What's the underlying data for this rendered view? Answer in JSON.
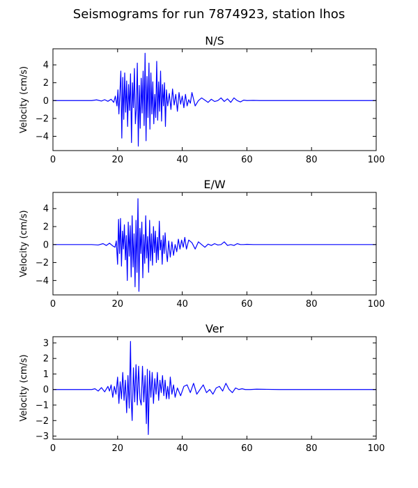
{
  "figure": {
    "title": "Seismograms for run 7874923, station lhos"
  },
  "chart_data": [
    {
      "type": "line",
      "title": "N/S",
      "xlabel": "",
      "ylabel": "Velocity (cm/s)",
      "xlim": [
        0,
        100
      ],
      "ylim": [
        -5.6,
        5.8
      ],
      "xticks": [
        0,
        20,
        40,
        60,
        80,
        100
      ],
      "yticks": [
        -4,
        -2,
        0,
        2,
        4
      ],
      "color": "#0000ff",
      "series": [
        {
          "x": [
            0,
            12,
            13.5,
            15,
            16,
            17,
            18,
            18.8,
            19.3,
            19.8,
            20.1,
            20.4,
            20.7,
            21.0,
            21.3,
            21.6,
            21.9,
            22.2,
            22.5,
            22.8,
            23.1,
            23.4,
            23.7,
            24.0,
            24.3,
            24.6,
            24.9,
            25.2,
            25.5,
            25.8,
            26.1,
            26.4,
            26.7,
            27.0,
            27.3,
            27.6,
            27.9,
            28.2,
            28.5,
            28.8,
            29.1,
            29.4,
            29.7,
            30.0,
            30.3,
            30.6,
            30.9,
            31.2,
            31.5,
            31.8,
            32.1,
            32.4,
            32.7,
            33.0,
            33.3,
            33.6,
            33.9,
            34.2,
            34.5,
            34.8,
            35.1,
            35.5,
            36,
            36.5,
            37,
            37.5,
            38,
            38.5,
            39,
            39.5,
            40,
            40.5,
            41,
            41.5,
            42,
            42.5,
            43,
            44,
            45,
            46,
            47,
            48,
            49,
            50,
            51,
            52,
            53,
            54,
            55,
            56,
            57,
            58,
            59,
            60,
            62,
            64,
            70,
            100
          ],
          "y": [
            0,
            0,
            0.08,
            -0.05,
            0.1,
            -0.08,
            0.15,
            -0.2,
            0.5,
            -0.6,
            1.2,
            -1.5,
            0.8,
            3.3,
            -4.2,
            2.6,
            -2.1,
            3.1,
            -1.3,
            2.2,
            -2.9,
            1.8,
            -1.1,
            3.0,
            -4.7,
            2.0,
            -0.8,
            3.6,
            -2.6,
            -0.9,
            4.2,
            -5.1,
            1.7,
            -3.1,
            2.5,
            -1.4,
            3.3,
            -2.8,
            5.3,
            -4.5,
            2.7,
            -1.9,
            4.2,
            -3.2,
            3.1,
            -1.5,
            2.1,
            -2.6,
            0.7,
            -1.9,
            4.4,
            -2.2,
            2.1,
            -1.2,
            3.3,
            -2.3,
            1.8,
            -0.6,
            2.0,
            -2.9,
            1.2,
            -0.6,
            0.8,
            -1.0,
            1.3,
            -0.5,
            0.7,
            -1.2,
            0.9,
            -0.4,
            0.5,
            -0.8,
            0.7,
            -0.6,
            0.1,
            -0.3,
            0.9,
            -0.6,
            0.0,
            0.3,
            0.05,
            -0.2,
            0.15,
            -0.1,
            0.0,
            0.3,
            -0.1,
            0.2,
            -0.2,
            0.3,
            0.0,
            -0.15,
            0.05,
            0.0,
            0.02,
            0.0,
            0.0,
            0.0
          ]
        }
      ]
    },
    {
      "type": "line",
      "title": "E/W",
      "xlabel": "",
      "ylabel": "Velocity (cm/s)",
      "xlim": [
        0,
        100
      ],
      "ylim": [
        -5.6,
        5.8
      ],
      "xticks": [
        0,
        20,
        40,
        60,
        80,
        100
      ],
      "yticks": [
        -4,
        -2,
        0,
        2,
        4
      ],
      "color": "#0000ff",
      "series": [
        {
          "x": [
            0,
            12,
            14,
            15.5,
            16.5,
            17.5,
            18.5,
            19.2,
            19.6,
            20.0,
            20.3,
            20.6,
            20.9,
            21.2,
            21.5,
            21.8,
            22.1,
            22.4,
            22.7,
            23.0,
            23.3,
            23.6,
            23.9,
            24.2,
            24.5,
            24.8,
            25.1,
            25.4,
            25.7,
            26.0,
            26.3,
            26.6,
            26.9,
            27.2,
            27.5,
            27.8,
            28.1,
            28.4,
            28.7,
            29.0,
            29.3,
            29.6,
            29.9,
            30.2,
            30.5,
            30.8,
            31.1,
            31.4,
            31.7,
            32.0,
            32.3,
            32.6,
            32.9,
            33.2,
            33.5,
            33.8,
            34.1,
            34.4,
            34.7,
            35.0,
            35.4,
            35.8,
            36.3,
            36.8,
            37.3,
            37.8,
            38.3,
            38.8,
            39.3,
            39.8,
            40.3,
            40.8,
            41.3,
            42,
            43,
            44,
            45,
            46,
            47,
            48,
            49,
            50,
            51,
            52,
            53,
            54,
            55,
            56,
            57,
            58,
            59,
            60,
            62,
            64,
            70,
            100
          ],
          "y": [
            0,
            0,
            -0.05,
            0.1,
            -0.1,
            0.15,
            -0.15,
            -0.3,
            0.4,
            -2.2,
            2.8,
            -1.0,
            2.9,
            -2.4,
            1.5,
            -0.5,
            2.2,
            -1.7,
            1.0,
            -4.0,
            2.5,
            -1.3,
            2.1,
            -3.6,
            3.2,
            -2.5,
            1.2,
            -4.7,
            2.7,
            -3.1,
            5.1,
            -5.2,
            1.8,
            -1.0,
            2.5,
            -3.7,
            1.1,
            -2.1,
            3.2,
            -1.5,
            0.9,
            -3.1,
            2.7,
            -1.8,
            1.2,
            -2.3,
            2.0,
            -0.9,
            1.5,
            -2.0,
            0.8,
            -1.7,
            2.6,
            -0.6,
            0.5,
            -2.2,
            1.0,
            -1.0,
            1.3,
            -0.6,
            -1.9,
            0.4,
            -1.4,
            0.3,
            -1.2,
            0.0,
            -0.8,
            0.6,
            -0.5,
            0.5,
            -0.3,
            0.8,
            -0.5,
            0.5,
            0.2,
            -0.5,
            0.3,
            0.0,
            -0.3,
            0.05,
            -0.1,
            0.1,
            -0.05,
            0.0,
            0.3,
            -0.1,
            0.0,
            -0.1,
            0.1,
            0.0,
            0.0,
            0.02,
            0.0,
            0.0,
            0.0,
            0.0
          ]
        }
      ]
    },
    {
      "type": "line",
      "title": "Ver",
      "xlabel": "",
      "ylabel": "Velocity (cm/s)",
      "xlim": [
        0,
        100
      ],
      "ylim": [
        -3.2,
        3.4
      ],
      "xticks": [
        0,
        20,
        40,
        60,
        80,
        100
      ],
      "yticks": [
        -3,
        -2,
        -1,
        0,
        1,
        2,
        3
      ],
      "color": "#0000ff",
      "series": [
        {
          "x": [
            0,
            12,
            13,
            14,
            15,
            16,
            17,
            17.5,
            18,
            18.5,
            19,
            19.5,
            20,
            20.4,
            20.8,
            21.2,
            21.6,
            22.0,
            22.4,
            22.8,
            23.2,
            23.6,
            24.0,
            24.2,
            24.5,
            24.9,
            25.3,
            25.7,
            26.1,
            26.5,
            26.9,
            27.3,
            27.7,
            28.1,
            28.5,
            28.9,
            29.2,
            29.5,
            29.9,
            30.3,
            30.7,
            31.1,
            31.5,
            31.9,
            32.3,
            32.7,
            33.1,
            33.5,
            33.9,
            34.3,
            34.7,
            35.1,
            35.5,
            35.9,
            36.3,
            36.8,
            37.3,
            37.8,
            38.5,
            39.5,
            40.5,
            41.5,
            42.5,
            43.5,
            44.5,
            45.5,
            46.5,
            47.5,
            48.5,
            49.5,
            50.5,
            51.5,
            52.5,
            53.5,
            54.5,
            55.5,
            56.5,
            57.5,
            58.5,
            59.5,
            61,
            63,
            70,
            100
          ],
          "y": [
            0,
            0,
            0.05,
            -0.1,
            0.12,
            -0.15,
            0.2,
            -0.1,
            0.3,
            -0.5,
            0.2,
            -0.3,
            0.8,
            -0.9,
            0.5,
            -0.6,
            1.1,
            -0.7,
            0.6,
            -1.5,
            0.9,
            -1.2,
            3.1,
            -0.6,
            -2.0,
            1.4,
            -0.8,
            1.6,
            -1.0,
            1.5,
            -0.6,
            -1.0,
            1.5,
            -0.8,
            0.9,
            -2.2,
            1.3,
            -2.9,
            1.2,
            -0.5,
            1.1,
            -0.9,
            0.7,
            -0.3,
            1.1,
            -0.7,
            0.6,
            -0.2,
            0.9,
            -0.4,
            0.6,
            -0.6,
            0.2,
            -0.6,
            0.8,
            -0.3,
            0.3,
            -0.5,
            0.1,
            -0.4,
            0.2,
            0.3,
            -0.2,
            0.4,
            -0.3,
            0.0,
            0.3,
            -0.2,
            0.0,
            -0.3,
            0.1,
            0.2,
            -0.1,
            0.4,
            0.0,
            -0.2,
            0.1,
            0.0,
            0.05,
            0.0,
            0.0,
            0.02,
            0.0,
            0.0
          ]
        }
      ]
    }
  ]
}
